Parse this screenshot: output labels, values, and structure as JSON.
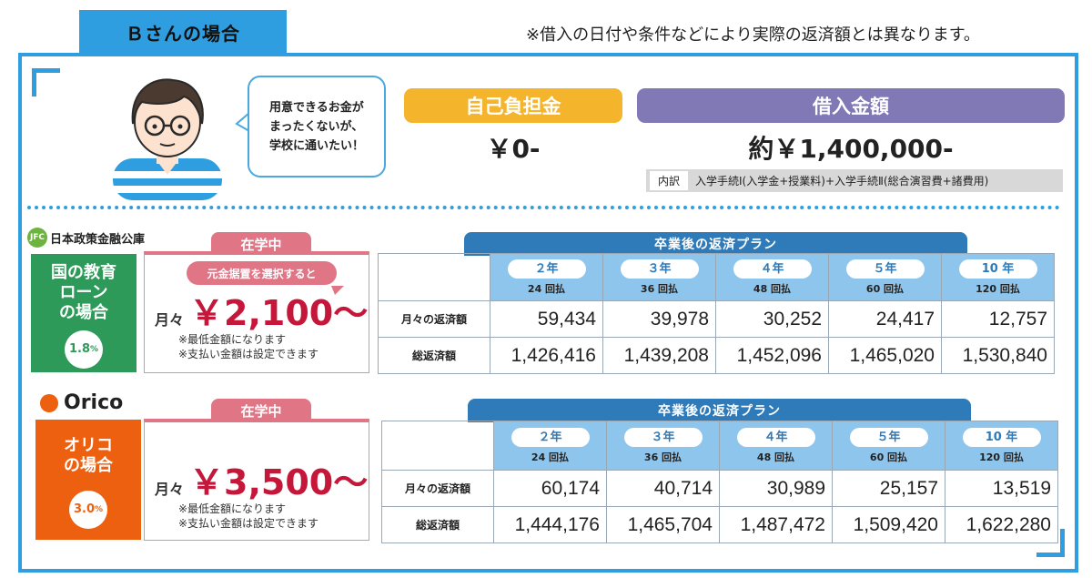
{
  "header": {
    "title": "Ｂさんの場合",
    "note": "※借入の日付や条件などにより実際の返済額とは異なります。"
  },
  "speech": {
    "lines": [
      "用意できるお金が",
      "まったくないが、",
      "学校に通いたい！"
    ]
  },
  "self_payment": {
    "label": "自己負担金",
    "amount": "￥0-"
  },
  "loan": {
    "label": "借入金額",
    "amount": "約￥1,400,000-",
    "breakdown_tag": "内訳",
    "breakdown_text": "入学手続Ⅰ(入学金+授業料)+入学手続Ⅱ(総合演習費+諸費用)"
  },
  "lenders": [
    {
      "logo_mark": "JFC",
      "logo_text": "日本政策金融公庫",
      "name_lines": [
        "国の教育",
        "ローン",
        "の場合"
      ],
      "rate": "1.8",
      "rate_unit": "%",
      "color": "#2e9a5a",
      "school_label": "在学中",
      "choice_label": "元金据置を選択すると",
      "monthly_label": "月々",
      "monthly_amount": "￥2,100〜",
      "notes": [
        "※最低金額になります",
        "※支払い金額は設定できます"
      ],
      "plan_title": "卒業後の返済プラン",
      "periods": [
        {
          "years": "２年",
          "count": "24 回払"
        },
        {
          "years": "３年",
          "count": "36 回払"
        },
        {
          "years": "４年",
          "count": "48 回払"
        },
        {
          "years": "５年",
          "count": "60 回払"
        },
        {
          "years": "10 年",
          "count": "120 回払"
        }
      ],
      "row_monthly_label": "月々の返済額",
      "row_total_label": "総返済額",
      "monthly_values": [
        "59,434",
        "39,978",
        "30,252",
        "24,417",
        "12,757"
      ],
      "total_values": [
        "1,426,416",
        "1,439,208",
        "1,452,096",
        "1,465,020",
        "1,530,840"
      ]
    },
    {
      "logo_text": "Orico",
      "name_lines": [
        "オリコ",
        "の場合"
      ],
      "rate": "3.0",
      "rate_unit": "%",
      "color": "#ec6010",
      "school_label": "在学中",
      "monthly_label": "月々",
      "monthly_amount": "￥3,500〜",
      "notes": [
        "※最低金額になります",
        "※支払い金額は設定できます"
      ],
      "plan_title": "卒業後の返済プラン",
      "periods": [
        {
          "years": "２年",
          "count": "24 回払"
        },
        {
          "years": "３年",
          "count": "36 回払"
        },
        {
          "years": "４年",
          "count": "48 回払"
        },
        {
          "years": "５年",
          "count": "60 回払"
        },
        {
          "years": "10 年",
          "count": "120 回払"
        }
      ],
      "row_monthly_label": "月々の返済額",
      "row_total_label": "総返済額",
      "monthly_values": [
        "60,174",
        "40,714",
        "30,989",
        "25,157",
        "13,519"
      ],
      "total_values": [
        "1,444,176",
        "1,465,704",
        "1,487,472",
        "1,509,420",
        "1,622,280"
      ]
    }
  ]
}
